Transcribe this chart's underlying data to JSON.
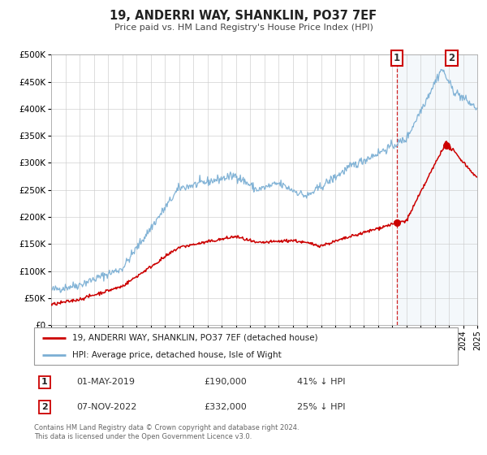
{
  "title": "19, ANDERRI WAY, SHANKLIN, PO37 7EF",
  "subtitle": "Price paid vs. HM Land Registry's House Price Index (HPI)",
  "legend_line1": "19, ANDERRI WAY, SHANKLIN, PO37 7EF (detached house)",
  "legend_line2": "HPI: Average price, detached house, Isle of Wight",
  "red_color": "#cc0000",
  "blue_color": "#7bafd4",
  "annotation1_date": "01-MAY-2019",
  "annotation1_price": "£190,000",
  "annotation1_hpi": "41% ↓ HPI",
  "annotation2_date": "07-NOV-2022",
  "annotation2_price": "£332,000",
  "annotation2_hpi": "25% ↓ HPI",
  "vline_x": 2019.33,
  "point1_x": 2019.33,
  "point1_y": 190000,
  "point2_x": 2022.85,
  "point2_y": 332000,
  "ylim": [
    0,
    500000
  ],
  "xlim": [
    1995,
    2025
  ],
  "yticks": [
    0,
    50000,
    100000,
    150000,
    200000,
    250000,
    300000,
    350000,
    400000,
    450000,
    500000
  ],
  "footnote1": "Contains HM Land Registry data © Crown copyright and database right 2024.",
  "footnote2": "This data is licensed under the Open Government Licence v3.0.",
  "background_color": "#ffffff",
  "grid_color": "#cccccc"
}
